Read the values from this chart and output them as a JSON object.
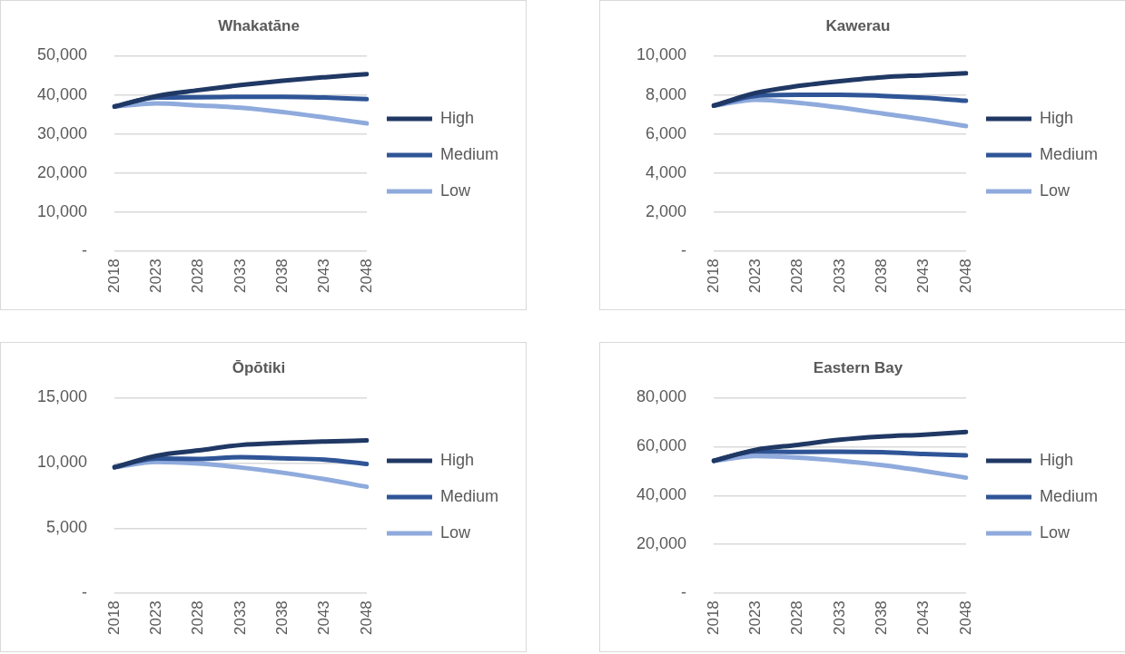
{
  "chart_data": [
    {
      "type": "line",
      "title": "Whakatāne",
      "categories": [
        "2018",
        "2023",
        "2028",
        "2033",
        "2038",
        "2043",
        "2048"
      ],
      "series": [
        {
          "name": "High",
          "color": "#203864",
          "values": [
            37000,
            39700,
            41200,
            42500,
            43600,
            44500,
            45300
          ]
        },
        {
          "name": "Medium",
          "color": "#2f5597",
          "values": [
            37000,
            39300,
            39400,
            39500,
            39500,
            39300,
            38900
          ]
        },
        {
          "name": "Low",
          "color": "#8faadc",
          "values": [
            37000,
            37800,
            37300,
            36700,
            35600,
            34200,
            32700
          ]
        }
      ],
      "ylim": [
        0,
        50000
      ],
      "yticks": [
        {
          "value": 0,
          "label": "-"
        },
        {
          "value": 10000,
          "label": "10,000"
        },
        {
          "value": 20000,
          "label": "20,000"
        },
        {
          "value": 30000,
          "label": "30,000"
        },
        {
          "value": 40000,
          "label": "40,000"
        },
        {
          "value": 50000,
          "label": "50,000"
        }
      ],
      "grid": "y",
      "legend": "right"
    },
    {
      "type": "line",
      "title": "Kawerau",
      "categories": [
        "2018",
        "2023",
        "2028",
        "2033",
        "2038",
        "2043",
        "2048"
      ],
      "series": [
        {
          "name": "High",
          "color": "#203864",
          "values": [
            7450,
            8100,
            8450,
            8700,
            8900,
            9000,
            9100
          ]
        },
        {
          "name": "Medium",
          "color": "#2f5597",
          "values": [
            7450,
            7950,
            8000,
            8000,
            7950,
            7850,
            7700
          ]
        },
        {
          "name": "Low",
          "color": "#8faadc",
          "values": [
            7450,
            7750,
            7600,
            7350,
            7050,
            6750,
            6400
          ]
        }
      ],
      "ylim": [
        0,
        10000
      ],
      "yticks": [
        {
          "value": 0,
          "label": "-"
        },
        {
          "value": 2000,
          "label": "2,000"
        },
        {
          "value": 4000,
          "label": "4,000"
        },
        {
          "value": 6000,
          "label": "6,000"
        },
        {
          "value": 8000,
          "label": "8,000"
        },
        {
          "value": 10000,
          "label": "10,000"
        }
      ],
      "grid": "y",
      "legend": "right"
    },
    {
      "type": "line",
      "title": "Ōpōtiki",
      "categories": [
        "2018",
        "2023",
        "2028",
        "2033",
        "2038",
        "2043",
        "2048"
      ],
      "series": [
        {
          "name": "High",
          "color": "#203864",
          "values": [
            9670,
            10550,
            10960,
            11370,
            11530,
            11640,
            11720
          ]
        },
        {
          "name": "Medium",
          "color": "#2f5597",
          "values": [
            9670,
            10330,
            10300,
            10440,
            10350,
            10250,
            9920
          ]
        },
        {
          "name": "Low",
          "color": "#8faadc",
          "values": [
            9670,
            10080,
            9950,
            9650,
            9250,
            8750,
            8170
          ]
        }
      ],
      "ylim": [
        0,
        15000
      ],
      "yticks": [
        {
          "value": 0,
          "label": "-"
        },
        {
          "value": 5000,
          "label": "5,000"
        },
        {
          "value": 10000,
          "label": "10,000"
        },
        {
          "value": 15000,
          "label": "15,000"
        }
      ],
      "grid": "y",
      "legend": "right"
    },
    {
      "type": "line",
      "title": "Eastern Bay",
      "categories": [
        "2018",
        "2023",
        "2028",
        "2033",
        "2038",
        "2043",
        "2048"
      ],
      "series": [
        {
          "name": "High",
          "color": "#203864",
          "values": [
            54200,
            58700,
            60700,
            62800,
            64100,
            64900,
            66000
          ]
        },
        {
          "name": "Medium",
          "color": "#2f5597",
          "values": [
            54200,
            58000,
            57800,
            57900,
            57700,
            57000,
            56400
          ]
        },
        {
          "name": "Low",
          "color": "#8faadc",
          "values": [
            54200,
            56100,
            55500,
            54200,
            52400,
            50000,
            47300
          ]
        }
      ],
      "ylim": [
        0,
        80000
      ],
      "yticks": [
        {
          "value": 0,
          "label": "-"
        },
        {
          "value": 20000,
          "label": "20,000"
        },
        {
          "value": 40000,
          "label": "40,000"
        },
        {
          "value": 60000,
          "label": "60,000"
        },
        {
          "value": 80000,
          "label": "80,000"
        }
      ],
      "grid": "y",
      "legend": "right"
    }
  ]
}
